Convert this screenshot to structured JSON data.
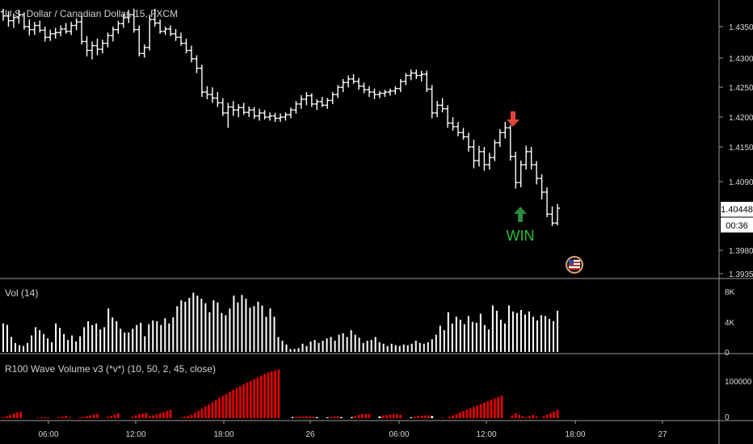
{
  "header": {
    "symbol_title": "U.S. Dollar / Canadian Dollar, 15, FXCM"
  },
  "colors": {
    "background": "#000000",
    "bar": "#ffffff",
    "price_axis_text": "#d9d9d9",
    "panel_divider": "#9a9a9a",
    "sell_arrow": "#e0463a",
    "buy_arrow": "#2e8b3d",
    "win_text": "#2cbf36",
    "wave_red": "#e00000",
    "wave_white": "#ffffff"
  },
  "annotations": {
    "win_label": "WIN",
    "sell_arrow_icon": "down-arrow-icon",
    "buy_arrow_icon": "up-arrow-icon",
    "flag_icon": "us-flag-icon"
  },
  "price_axis": {
    "ticks": [
      "1.43500",
      "1.43000",
      "1.42500",
      "1.42000",
      "1.41500",
      "1.40900",
      "1.40448",
      "1.39800",
      "1.39350"
    ],
    "current_price": "1.40448",
    "countdown": "00:36"
  },
  "time_axis": {
    "ticks": [
      "06:00",
      "12:00",
      "18:00",
      "26",
      "06:00",
      "12:00",
      "18:00",
      "27"
    ]
  },
  "volume_panel": {
    "title": "Vol (14)",
    "ticks": [
      "8K",
      "4K",
      "0"
    ]
  },
  "wave_panel": {
    "title": "R100 Wave Volume v3 (*v*) (10, 50, 2, 45, close)",
    "ticks": [
      "100000",
      "0"
    ]
  },
  "chart_data": [
    {
      "type": "ohlc",
      "title": "U.S. Dollar / Canadian Dollar, 15, FXCM",
      "ylim": [
        1.3935,
        1.4375
      ],
      "ohlc": [
        [
          1.4375,
          1.438,
          1.436,
          1.4368
        ],
        [
          1.4368,
          1.4376,
          1.435,
          1.436
        ],
        [
          1.436,
          1.4372,
          1.4348,
          1.4365
        ],
        [
          1.4365,
          1.4378,
          1.4355,
          1.437
        ],
        [
          1.437,
          1.4374,
          1.4345,
          1.435
        ],
        [
          1.435,
          1.4362,
          1.4335,
          1.4345
        ],
        [
          1.4345,
          1.4358,
          1.4336,
          1.4352
        ],
        [
          1.4352,
          1.436,
          1.434,
          1.4344
        ],
        [
          1.4344,
          1.435,
          1.4325,
          1.4332
        ],
        [
          1.4332,
          1.4345,
          1.4326,
          1.4338
        ],
        [
          1.4338,
          1.4348,
          1.433,
          1.434
        ],
        [
          1.434,
          1.4352,
          1.4334,
          1.4346
        ],
        [
          1.4346,
          1.4356,
          1.4338,
          1.4342
        ],
        [
          1.4342,
          1.4358,
          1.4336,
          1.4352
        ],
        [
          1.4352,
          1.4364,
          1.4344,
          1.4358
        ],
        [
          1.4358,
          1.4368,
          1.432,
          1.4325
        ],
        [
          1.4325,
          1.4334,
          1.43,
          1.431
        ],
        [
          1.431,
          1.4325,
          1.4295,
          1.4318
        ],
        [
          1.4318,
          1.433,
          1.4302,
          1.4312
        ],
        [
          1.4312,
          1.4328,
          1.4305,
          1.4322
        ],
        [
          1.4322,
          1.434,
          1.4315,
          1.4335
        ],
        [
          1.4335,
          1.435,
          1.4325,
          1.4345
        ],
        [
          1.4345,
          1.436,
          1.4338,
          1.4355
        ],
        [
          1.4355,
          1.4372,
          1.4348,
          1.4365
        ],
        [
          1.4365,
          1.4378,
          1.4356,
          1.437
        ],
        [
          1.437,
          1.438,
          1.434,
          1.4345
        ],
        [
          1.4345,
          1.4352,
          1.43,
          1.4305
        ],
        [
          1.4305,
          1.432,
          1.4298,
          1.4315
        ],
        [
          1.4315,
          1.437,
          1.431,
          1.4362
        ],
        [
          1.4362,
          1.438,
          1.435,
          1.4356
        ],
        [
          1.4356,
          1.4362,
          1.4338,
          1.4342
        ],
        [
          1.4342,
          1.435,
          1.4336,
          1.4346
        ],
        [
          1.4346,
          1.4352,
          1.4334,
          1.4338
        ],
        [
          1.4338,
          1.4346,
          1.4326,
          1.4332
        ],
        [
          1.4332,
          1.434,
          1.4318,
          1.4322
        ],
        [
          1.4322,
          1.433,
          1.4305,
          1.431
        ],
        [
          1.431,
          1.4318,
          1.429,
          1.4296
        ],
        [
          1.4296,
          1.4302,
          1.4272,
          1.428
        ],
        [
          1.428,
          1.4286,
          1.4232,
          1.424
        ],
        [
          1.424,
          1.425,
          1.4228,
          1.4236
        ],
        [
          1.4236,
          1.4248,
          1.4222,
          1.423
        ],
        [
          1.423,
          1.424,
          1.4215,
          1.4222
        ],
        [
          1.4222,
          1.423,
          1.42,
          1.4205
        ],
        [
          1.4205,
          1.4222,
          1.418,
          1.4215
        ],
        [
          1.4215,
          1.4225,
          1.42,
          1.421
        ],
        [
          1.421,
          1.422,
          1.4198,
          1.4214
        ],
        [
          1.4214,
          1.4222,
          1.4202,
          1.4206
        ],
        [
          1.4206,
          1.4216,
          1.4198,
          1.421
        ],
        [
          1.421,
          1.4215,
          1.4195,
          1.42
        ],
        [
          1.42,
          1.4212,
          1.4192,
          1.4205
        ],
        [
          1.4205,
          1.421,
          1.4194,
          1.4198
        ],
        [
          1.4198,
          1.4206,
          1.4192,
          1.42
        ],
        [
          1.42,
          1.4205,
          1.419,
          1.4196
        ],
        [
          1.4196,
          1.4204,
          1.419,
          1.4198
        ],
        [
          1.4198,
          1.4206,
          1.4192,
          1.4202
        ],
        [
          1.4202,
          1.4214,
          1.4196,
          1.421
        ],
        [
          1.421,
          1.4225,
          1.4204,
          1.422
        ],
        [
          1.422,
          1.4235,
          1.4212,
          1.4228
        ],
        [
          1.4228,
          1.424,
          1.4218,
          1.4234
        ],
        [
          1.4234,
          1.4238,
          1.4215,
          1.422
        ],
        [
          1.422,
          1.4228,
          1.421,
          1.4224
        ],
        [
          1.4224,
          1.4232,
          1.4215,
          1.4218
        ],
        [
          1.4218,
          1.423,
          1.4212,
          1.4226
        ],
        [
          1.4226,
          1.424,
          1.422,
          1.4236
        ],
        [
          1.4236,
          1.4252,
          1.423,
          1.4248
        ],
        [
          1.4248,
          1.4262,
          1.424,
          1.4256
        ],
        [
          1.4256,
          1.4268,
          1.4248,
          1.4262
        ],
        [
          1.4262,
          1.427,
          1.4254,
          1.4258
        ],
        [
          1.4258,
          1.4264,
          1.4244,
          1.425
        ],
        [
          1.425,
          1.4256,
          1.4238,
          1.4244
        ],
        [
          1.4244,
          1.425,
          1.4232,
          1.424
        ],
        [
          1.424,
          1.4246,
          1.4228,
          1.4236
        ],
        [
          1.4236,
          1.4242,
          1.423,
          1.4238
        ],
        [
          1.4238,
          1.4244,
          1.4232,
          1.424
        ],
        [
          1.424,
          1.4246,
          1.4234,
          1.4242
        ],
        [
          1.4242,
          1.425,
          1.4236,
          1.4246
        ],
        [
          1.4246,
          1.4262,
          1.424,
          1.4258
        ],
        [
          1.4258,
          1.4272,
          1.4252,
          1.4268
        ],
        [
          1.4268,
          1.4278,
          1.426,
          1.4272
        ],
        [
          1.4272,
          1.4278,
          1.4262,
          1.4268
        ],
        [
          1.4268,
          1.4276,
          1.4258,
          1.427
        ],
        [
          1.427,
          1.4276,
          1.424,
          1.4245
        ],
        [
          1.4245,
          1.4252,
          1.4196,
          1.4205
        ],
        [
          1.4205,
          1.4225,
          1.4198,
          1.4218
        ],
        [
          1.4218,
          1.423,
          1.4206,
          1.4212
        ],
        [
          1.4212,
          1.4218,
          1.418,
          1.4188
        ],
        [
          1.4188,
          1.4198,
          1.4175,
          1.4182
        ],
        [
          1.4182,
          1.419,
          1.4166,
          1.4172
        ],
        [
          1.4172,
          1.418,
          1.416,
          1.4165
        ],
        [
          1.4165,
          1.4172,
          1.414,
          1.4148
        ],
        [
          1.4148,
          1.416,
          1.4112,
          1.4125
        ],
        [
          1.4125,
          1.415,
          1.4115,
          1.414
        ],
        [
          1.414,
          1.4148,
          1.4108,
          1.4118
        ],
        [
          1.4118,
          1.4138,
          1.411,
          1.413
        ],
        [
          1.413,
          1.416,
          1.4124,
          1.4155
        ],
        [
          1.4155,
          1.4178,
          1.4148,
          1.4172
        ],
        [
          1.4172,
          1.419,
          1.4162,
          1.418
        ],
        [
          1.418,
          1.4185,
          1.4125,
          1.4132
        ],
        [
          1.4132,
          1.414,
          1.4078,
          1.4088
        ],
        [
          1.4088,
          1.4125,
          1.408,
          1.4118
        ],
        [
          1.4118,
          1.415,
          1.411,
          1.414
        ],
        [
          1.414,
          1.4148,
          1.411,
          1.4118
        ],
        [
          1.4118,
          1.4124,
          1.4085,
          1.4095
        ],
        [
          1.4095,
          1.4102,
          1.406,
          1.4072
        ],
        [
          1.4072,
          1.408,
          1.403,
          1.4035
        ],
        [
          1.4035,
          1.4048,
          1.4015,
          1.402
        ],
        [
          1.402,
          1.4052,
          1.4016,
          1.4045
        ]
      ]
    },
    {
      "type": "bar",
      "title": "Vol (14)",
      "ylim": [
        0,
        8500
      ],
      "values": [
        3800,
        3600,
        2000,
        1200,
        900,
        800,
        1200,
        2200,
        3300,
        2900,
        2400,
        1800,
        1300,
        3800,
        3200,
        2400,
        1600,
        2200,
        1400,
        2100,
        3300,
        4100,
        3600,
        3800,
        3000,
        3300,
        5800,
        4600,
        4100,
        3100,
        2600,
        2600,
        3100,
        3600,
        3900,
        2100,
        3700,
        4200,
        4100,
        3600,
        4500,
        3800,
        4600,
        6100,
        6900,
        6700,
        7200,
        7900,
        7500,
        7100,
        6500,
        5300,
        6900,
        6600,
        5200,
        4900,
        5800,
        7500,
        6600,
        7600,
        7100,
        5900,
        6100,
        6700,
        6200,
        4700,
        5800,
        4700,
        2000,
        1500,
        1000,
        400,
        400,
        500,
        1100,
        800,
        1400,
        1600,
        1200,
        1500,
        1800,
        2000,
        1500,
        2300,
        2500,
        2000,
        2900,
        2300,
        1900,
        1200,
        1500,
        1600,
        2000,
        1300,
        1100,
        800,
        1100,
        900,
        800,
        1000,
        900,
        1100,
        1500,
        1200,
        1100,
        1300,
        1700,
        2300,
        3500,
        2900,
        5300,
        3800,
        4700,
        4300,
        3700,
        4800,
        4000,
        3900,
        5100,
        3600,
        3000,
        6200,
        5500,
        4300,
        3800,
        6200,
        5400,
        5200,
        5600,
        5000,
        5400,
        4700,
        4200,
        4900,
        4800,
        4400,
        4100,
        5500
      ]
    },
    {
      "type": "bar",
      "title": "R100 Wave Volume v3 (*v*) (10, 50, 2, 45, close)",
      "ylim": [
        0,
        170000
      ],
      "series": [
        {
          "name": "",
          "values": [
            3000,
            6000,
            9000,
            13000,
            16000,
            18000,
            0,
            0,
            0,
            0,
            1500,
            2500,
            2500,
            2000,
            0,
            0,
            3000,
            5000,
            7000,
            2000,
            0,
            0,
            2000,
            4000,
            6000,
            8000,
            10000,
            12000,
            0,
            0,
            4000,
            7000,
            10000,
            14000,
            0,
            0,
            0,
            4000,
            8000,
            12000,
            13000,
            15000,
            5000,
            8000,
            11000,
            14000,
            17000,
            21000,
            24000,
            0,
            0,
            2000,
            4000,
            6000,
            10000,
            15000,
            21000,
            27000,
            33000,
            39000,
            45000,
            51000,
            57000,
            63000,
            69000,
            75000,
            81000,
            86000,
            91000,
            96000,
            101000,
            106000,
            111000,
            116000,
            121000,
            126000,
            130000,
            133000,
            136000,
            138000,
            0,
            0,
            0,
            3000,
            4000,
            5000,
            4000,
            5000,
            5000,
            4000,
            3000,
            0,
            0,
            2000,
            4000,
            5000,
            5000,
            3000,
            0,
            0,
            3000,
            6000,
            9000,
            12000,
            12000,
            12000,
            0,
            0,
            5000,
            8000,
            9000,
            10000,
            11000,
            11000,
            10000,
            0,
            0,
            2000,
            4000,
            6000,
            7000,
            8000,
            8000,
            6000,
            0,
            0,
            2000,
            0,
            4000,
            8000,
            12000,
            16000,
            20000,
            24000,
            28000,
            32000,
            36000,
            40000,
            44000,
            48000,
            52000,
            56000,
            60000,
            64000,
            0,
            0,
            8000,
            14000,
            9000,
            6000,
            3000,
            6000,
            9000,
            5000,
            0,
            5000,
            10000,
            14000,
            19000,
            24000
          ]
        }
      ]
    }
  ]
}
